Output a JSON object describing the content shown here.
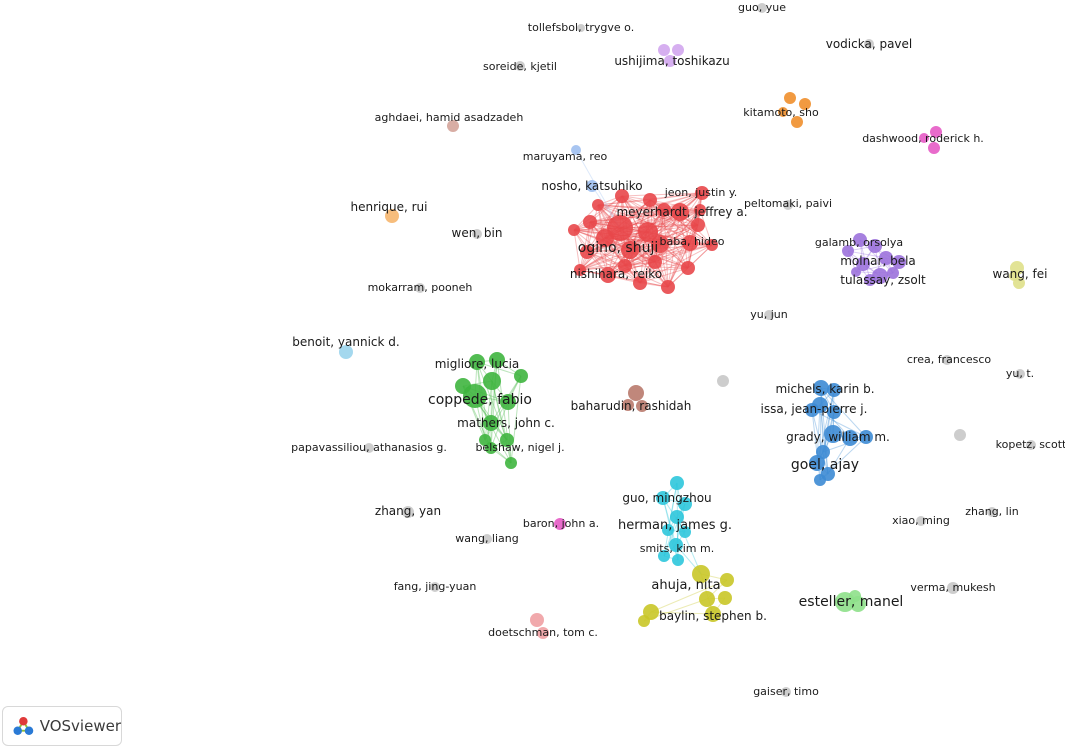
{
  "app": {
    "name": "VOSviewer"
  },
  "clusters": {
    "red": "#e8474a",
    "green": "#3fb53f",
    "blue": "#3d8bd4",
    "purple": "#9c72dc",
    "cyan": "#2ec7db",
    "yellow": "#c9c728",
    "orange": "#f08f2c",
    "brown": "#b97a6d",
    "pink": "#e65bc5",
    "lightgreen": "#8ee08a",
    "lightpurple": "#d1a6ee",
    "lightblue": "#9fbff0",
    "skyblue": "#9ad4ec",
    "lightred": "#f0a0a3",
    "khaki": "#dfe08a",
    "lightorange": "#f6b66e",
    "rosebrown": "#d4a49a",
    "gray": "#c8c8c8"
  },
  "labels": [
    {
      "id": "guo-yue",
      "text": "guo, yue",
      "cluster": "gray"
    },
    {
      "id": "tollefsbol-trygve",
      "text": "tollefsbol, trygve o.",
      "cluster": "gray"
    },
    {
      "id": "vodicka-pavel",
      "text": "vodicka, pavel",
      "cluster": "gray"
    },
    {
      "id": "ushijima-toshikazu",
      "text": "ushijima, toshikazu",
      "cluster": "lightpurple"
    },
    {
      "id": "soreide-kjetil",
      "text": "soreide, kjetil",
      "cluster": "gray"
    },
    {
      "id": "kitamoto-sho",
      "text": "kitamoto, sho",
      "cluster": "orange"
    },
    {
      "id": "aghdaei-hamid",
      "text": "aghdaei, hamid asadzadeh",
      "cluster": "brown"
    },
    {
      "id": "dashwood-roderick",
      "text": "dashwood, roderick h.",
      "cluster": "pink"
    },
    {
      "id": "maruyama-reo",
      "text": "maruyama, reo",
      "cluster": "lightblue"
    },
    {
      "id": "nosho-katsuhiko",
      "text": "nosho, katsuhiko",
      "cluster": "lightblue"
    },
    {
      "id": "jeon-justin",
      "text": "jeon, justin y.",
      "cluster": "red"
    },
    {
      "id": "meyerhardt-jeffrey",
      "text": "meyerhardt, jeffrey a.",
      "cluster": "red"
    },
    {
      "id": "peltomaki-paivi",
      "text": "peltomaki, paivi",
      "cluster": "gray"
    },
    {
      "id": "henrique-rui",
      "text": "henrique, rui",
      "cluster": "lightorange"
    },
    {
      "id": "wen-bin",
      "text": "wen, bin",
      "cluster": "gray"
    },
    {
      "id": "ogino-shuji",
      "text": "ogino, shuji",
      "cluster": "red"
    },
    {
      "id": "baba-hideo",
      "text": "baba, hideo",
      "cluster": "red"
    },
    {
      "id": "galamb-orsolya",
      "text": "galamb, orsolya",
      "cluster": "purple"
    },
    {
      "id": "molnar-bela",
      "text": "molnar, bela",
      "cluster": "purple"
    },
    {
      "id": "nishihara-reiko",
      "text": "nishihara, reiko",
      "cluster": "red"
    },
    {
      "id": "wang-fei",
      "text": "wang, fei",
      "cluster": "khaki"
    },
    {
      "id": "tulassay-zsolt",
      "text": "tulassay, zsolt",
      "cluster": "purple"
    },
    {
      "id": "mokarram-pooneh",
      "text": "mokarram, pooneh",
      "cluster": "gray"
    },
    {
      "id": "yu-jun",
      "text": "yu, jun",
      "cluster": "gray"
    },
    {
      "id": "benoit-yannick",
      "text": "benoit, yannick d.",
      "cluster": "skyblue"
    },
    {
      "id": "crea-francesco",
      "text": "crea, francesco",
      "cluster": "gray"
    },
    {
      "id": "migliore-lucia",
      "text": "migliore, lucia",
      "cluster": "green"
    },
    {
      "id": "yu-t",
      "text": "yu, t.",
      "cluster": "gray"
    },
    {
      "id": "michels-karin",
      "text": "michels, karin b.",
      "cluster": "blue"
    },
    {
      "id": "coppede-fabio",
      "text": "coppede, fabio",
      "cluster": "green"
    },
    {
      "id": "baharudin-rashidah",
      "text": "baharudin, rashidah",
      "cluster": "brown"
    },
    {
      "id": "issa-jean-pierre",
      "text": "issa, jean-pierre j.",
      "cluster": "blue"
    },
    {
      "id": "mathers-john",
      "text": "mathers, john c.",
      "cluster": "green"
    },
    {
      "id": "grady-william",
      "text": "grady, william m.",
      "cluster": "blue"
    },
    {
      "id": "papavassiliou-athanasios",
      "text": "papavassiliou, athanasios g.",
      "cluster": "gray"
    },
    {
      "id": "belshaw-nigel",
      "text": "belshaw, nigel j.",
      "cluster": "green"
    },
    {
      "id": "kopetz-scott",
      "text": "kopetz, scott",
      "cluster": "gray"
    },
    {
      "id": "goel-ajay",
      "text": "goel, ajay",
      "cluster": "blue"
    },
    {
      "id": "guo-mingzhou",
      "text": "guo, mingzhou",
      "cluster": "cyan"
    },
    {
      "id": "zhang-yan",
      "text": "zhang, yan",
      "cluster": "gray"
    },
    {
      "id": "zhang-lin",
      "text": "zhang, lin",
      "cluster": "gray"
    },
    {
      "id": "baron-john",
      "text": "baron, john a.",
      "cluster": "pink"
    },
    {
      "id": "herman-james",
      "text": "herman, james g.",
      "cluster": "cyan"
    },
    {
      "id": "xiao-ming",
      "text": "xiao, ming",
      "cluster": "gray"
    },
    {
      "id": "wang-liang",
      "text": "wang, liang",
      "cluster": "gray"
    },
    {
      "id": "smits-kim",
      "text": "smits, kim m.",
      "cluster": "cyan"
    },
    {
      "id": "ahuja-nita",
      "text": "ahuja, nita",
      "cluster": "yellow"
    },
    {
      "id": "fang-jing-yuan",
      "text": "fang, jing-yuan",
      "cluster": "gray"
    },
    {
      "id": "verma-mukesh",
      "text": "verma, mukesh",
      "cluster": "gray"
    },
    {
      "id": "esteller-manel",
      "text": "esteller, manel",
      "cluster": "lightgreen"
    },
    {
      "id": "baylin-stephen",
      "text": "baylin, stephen b.",
      "cluster": "yellow"
    },
    {
      "id": "doetschman-tom",
      "text": "doetschman, tom c.",
      "cluster": "lightred"
    },
    {
      "id": "gaiser-timo",
      "text": "gaiser, timo",
      "cluster": "gray"
    }
  ]
}
